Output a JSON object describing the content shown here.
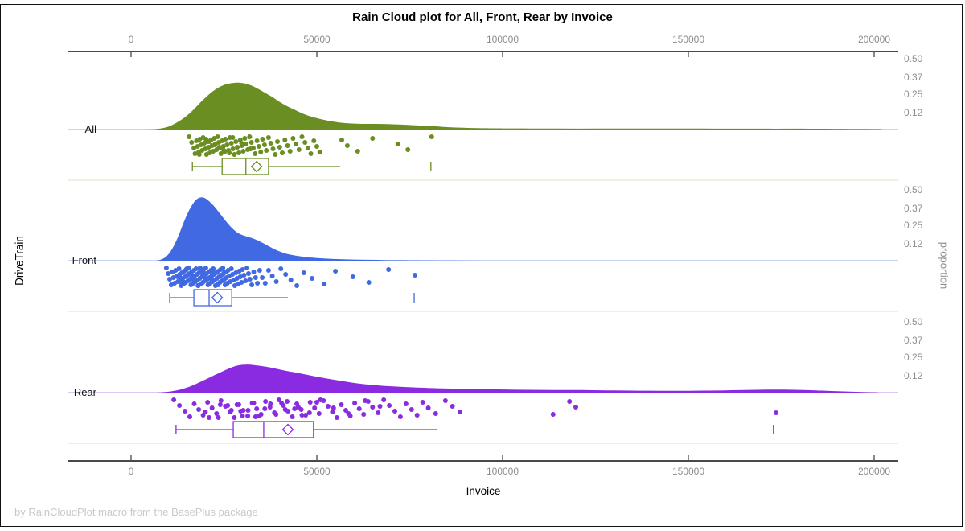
{
  "title": "Rain Cloud plot for All, Front, Rear by Invoice",
  "footer": "by RainCloudPlot macro from the BasePlus package",
  "x_axis": {
    "label": "Invoice",
    "tick_values": [
      0,
      50000,
      100000,
      150000,
      200000
    ],
    "tick_labels": [
      "0",
      "50000",
      "100000",
      "150000",
      "200000"
    ]
  },
  "y_axis": {
    "label": "DriveTrain",
    "categories": [
      "All",
      "Front",
      "Rear"
    ]
  },
  "right_axis": {
    "label": "proportion",
    "tick_values": [
      0.5,
      0.37,
      0.25,
      0.12
    ],
    "tick_labels": [
      "0.50",
      "0.37",
      "0.25",
      "0.12"
    ]
  },
  "colors": {
    "axis_line": "#0d0d0d",
    "tick_text": "#8c8c8c",
    "frame": "#111111"
  },
  "chart_data": {
    "type": "raincloud",
    "title": "Rain Cloud plot for All, Front, Rear by Invoice",
    "xlabel": "Invoice",
    "ylabel": "DriveTrain",
    "y2label": "proportion",
    "xlim": [
      -17000,
      206500
    ],
    "proportion_ticks": [
      0.12,
      0.25,
      0.37,
      0.5
    ],
    "groups": [
      {
        "name": "All",
        "color": "#6B8E23",
        "baseline_color": "#b7c78a",
        "separator_color": "#e3e9d2",
        "box": {
          "whisker_min": 16500,
          "q1": 24500,
          "median": 30900,
          "q3": 37000,
          "whisker_max": 56300,
          "mean": 33800,
          "far_outlier": 80700
        },
        "density": [
          [
            4000,
            0
          ],
          [
            7000,
            0.004
          ],
          [
            10000,
            0.02
          ],
          [
            13000,
            0.06
          ],
          [
            16000,
            0.12
          ],
          [
            19000,
            0.2
          ],
          [
            22000,
            0.27
          ],
          [
            25000,
            0.315
          ],
          [
            28000,
            0.33
          ],
          [
            30000,
            0.328
          ],
          [
            32000,
            0.315
          ],
          [
            34000,
            0.29
          ],
          [
            36000,
            0.26
          ],
          [
            38000,
            0.23
          ],
          [
            40000,
            0.195
          ],
          [
            42000,
            0.165
          ],
          [
            44000,
            0.14
          ],
          [
            46000,
            0.115
          ],
          [
            48000,
            0.095
          ],
          [
            50000,
            0.08
          ],
          [
            52000,
            0.068
          ],
          [
            54000,
            0.058
          ],
          [
            56000,
            0.05
          ],
          [
            58000,
            0.045
          ],
          [
            60000,
            0.042
          ],
          [
            63000,
            0.04
          ],
          [
            66000,
            0.04
          ],
          [
            69000,
            0.038
          ],
          [
            72000,
            0.035
          ],
          [
            75000,
            0.032
          ],
          [
            78000,
            0.028
          ],
          [
            81000,
            0.024
          ],
          [
            84000,
            0.019
          ],
          [
            87000,
            0.015
          ],
          [
            90000,
            0.012
          ],
          [
            95000,
            0.009
          ],
          [
            100000,
            0.008
          ],
          [
            110000,
            0.007
          ],
          [
            120000,
            0.0065
          ],
          [
            130000,
            0.007
          ],
          [
            140000,
            0.0075
          ],
          [
            150000,
            0.007
          ],
          [
            160000,
            0.0065
          ],
          [
            170000,
            0.006
          ],
          [
            180000,
            0.006
          ],
          [
            190000,
            0.005
          ],
          [
            197000,
            0.004
          ],
          [
            202000,
            0.003
          ]
        ],
        "rain": [
          15600,
          16300,
          16900,
          17200,
          17600,
          17900,
          18200,
          18500,
          18800,
          19100,
          19400,
          19700,
          20000,
          20300,
          20600,
          20900,
          21200,
          21500,
          21800,
          22100,
          22400,
          22700,
          23000,
          23300,
          23600,
          23900,
          24200,
          24500,
          24800,
          25100,
          25400,
          25800,
          26200,
          26600,
          27000,
          27400,
          27800,
          28200,
          28600,
          29000,
          29400,
          29800,
          30200,
          30600,
          31000,
          31400,
          31900,
          32400,
          32900,
          33400,
          33900,
          34400,
          34900,
          35400,
          35900,
          36400,
          37000,
          37600,
          38200,
          38800,
          39400,
          40000,
          40700,
          41400,
          42100,
          42800,
          43600,
          44400,
          45200,
          46000,
          46800,
          47600,
          48400,
          49200,
          50000,
          50800,
          20150,
          22550,
          24950,
          27350,
          29750,
          32150,
          18350,
          21050,
          23750,
          26450,
          56700,
          58200,
          61000,
          65000,
          71800,
          74500,
          80900
        ]
      },
      {
        "name": "Front",
        "color": "#4169E1",
        "baseline_color": "#a9bcf0",
        "separator_color": "#dbe3f8",
        "box": {
          "whisker_min": 10400,
          "q1": 16900,
          "median": 21000,
          "q3": 27100,
          "whisker_max": 42200,
          "mean": 23200,
          "far_outlier": 76200
        },
        "density": [
          [
            6500,
            0
          ],
          [
            8000,
            0.008
          ],
          [
            9500,
            0.03
          ],
          [
            11000,
            0.08
          ],
          [
            12500,
            0.16
          ],
          [
            14000,
            0.26
          ],
          [
            15500,
            0.35
          ],
          [
            17000,
            0.415
          ],
          [
            18000,
            0.44
          ],
          [
            19000,
            0.448
          ],
          [
            20000,
            0.44
          ],
          [
            21000,
            0.42
          ],
          [
            22500,
            0.38
          ],
          [
            24000,
            0.33
          ],
          [
            25500,
            0.28
          ],
          [
            27000,
            0.235
          ],
          [
            28500,
            0.2
          ],
          [
            30000,
            0.18
          ],
          [
            31500,
            0.168
          ],
          [
            33000,
            0.155
          ],
          [
            34500,
            0.138
          ],
          [
            36000,
            0.118
          ],
          [
            37500,
            0.096
          ],
          [
            39000,
            0.076
          ],
          [
            40500,
            0.06
          ],
          [
            42000,
            0.048
          ],
          [
            44000,
            0.037
          ],
          [
            46000,
            0.029
          ],
          [
            48000,
            0.023
          ],
          [
            50000,
            0.019
          ],
          [
            53000,
            0.014
          ],
          [
            56000,
            0.011
          ],
          [
            60000,
            0.008
          ],
          [
            64000,
            0.006
          ],
          [
            68000,
            0.0045
          ],
          [
            72000,
            0.0035
          ],
          [
            76000,
            0.0028
          ],
          [
            80000,
            0.002
          ],
          [
            85000,
            0.0012
          ],
          [
            90000,
            0.0006
          ],
          [
            95000,
            0.0002
          ],
          [
            100000,
            0
          ]
        ],
        "rain": [
          9500,
          10000,
          10400,
          10800,
          11100,
          11400,
          11700,
          12000,
          12300,
          12600,
          12900,
          13100,
          13300,
          13500,
          13700,
          13900,
          14100,
          14300,
          14500,
          14700,
          14900,
          15100,
          15300,
          15500,
          15700,
          15900,
          16100,
          16300,
          16500,
          16700,
          16900,
          17100,
          17300,
          17500,
          17700,
          17900,
          18100,
          18300,
          18500,
          18700,
          18900,
          19100,
          19300,
          19500,
          19700,
          19900,
          20100,
          20300,
          20500,
          20700,
          20900,
          21100,
          21300,
          21500,
          21700,
          21900,
          22100,
          22300,
          22500,
          22700,
          22900,
          23100,
          23300,
          23500,
          23700,
          23900,
          24100,
          24300,
          24500,
          24700,
          24900,
          25100,
          25300,
          25500,
          25700,
          25900,
          26100,
          26400,
          26700,
          27000,
          27300,
          27600,
          27900,
          28200,
          28500,
          28800,
          29100,
          29400,
          29700,
          30000,
          30400,
          30800,
          31200,
          31600,
          32000,
          32500,
          33000,
          33500,
          34000,
          34600,
          13000,
          14000,
          15000,
          16000,
          17000,
          18000,
          19000,
          20000,
          21000,
          22000,
          12500,
          13600,
          14800,
          16200,
          17400,
          18600,
          19800,
          21600,
          23400,
          25200,
          35300,
          36100,
          37000,
          38000,
          39100,
          40300,
          41600,
          43000,
          44600,
          46500,
          48700,
          52000,
          55000,
          59700,
          64000,
          69300,
          76400
        ]
      },
      {
        "name": "Rear",
        "color": "#8A2BE2",
        "baseline_color": "#cba4ef",
        "separator_color": "#e9d9f9",
        "box": {
          "whisker_min": 12100,
          "q1": 27500,
          "median": 35700,
          "q3": 49100,
          "whisker_max": 82500,
          "mean": 42200,
          "far_outlier": 172900
        },
        "density": [
          [
            7000,
            0
          ],
          [
            10000,
            0.006
          ],
          [
            13000,
            0.02
          ],
          [
            16000,
            0.045
          ],
          [
            19000,
            0.08
          ],
          [
            22000,
            0.118
          ],
          [
            25000,
            0.155
          ],
          [
            27000,
            0.178
          ],
          [
            29000,
            0.193
          ],
          [
            31000,
            0.198
          ],
          [
            33000,
            0.195
          ],
          [
            35000,
            0.188
          ],
          [
            38000,
            0.175
          ],
          [
            41000,
            0.158
          ],
          [
            44000,
            0.143
          ],
          [
            47000,
            0.128
          ],
          [
            50000,
            0.112
          ],
          [
            53000,
            0.098
          ],
          [
            56000,
            0.085
          ],
          [
            59000,
            0.073
          ],
          [
            62000,
            0.062
          ],
          [
            65000,
            0.054
          ],
          [
            68000,
            0.048
          ],
          [
            72000,
            0.042
          ],
          [
            76000,
            0.037
          ],
          [
            80000,
            0.033
          ],
          [
            85000,
            0.029
          ],
          [
            90000,
            0.026
          ],
          [
            95000,
            0.024
          ],
          [
            100000,
            0.022
          ],
          [
            107000,
            0.02
          ],
          [
            114000,
            0.019
          ],
          [
            121000,
            0.018
          ],
          [
            128000,
            0.016
          ],
          [
            135000,
            0.014
          ],
          [
            142000,
            0.013
          ],
          [
            150000,
            0.013
          ],
          [
            158000,
            0.015
          ],
          [
            165000,
            0.018
          ],
          [
            171000,
            0.021
          ],
          [
            176000,
            0.021
          ],
          [
            181000,
            0.018
          ],
          [
            186000,
            0.014
          ],
          [
            191000,
            0.009
          ],
          [
            196000,
            0.005
          ],
          [
            201000,
            0.002
          ]
        ],
        "rain": [
          11500,
          13000,
          14500,
          15800,
          17000,
          18200,
          19400,
          20600,
          21800,
          23000,
          24200,
          25400,
          26600,
          27800,
          29000,
          30200,
          31400,
          32600,
          33800,
          35000,
          36200,
          37400,
          38600,
          39800,
          41000,
          42200,
          43400,
          44600,
          45800,
          47000,
          48200,
          49400,
          50600,
          51800,
          53000,
          54200,
          55400,
          56600,
          57800,
          59000,
          60200,
          61400,
          62600,
          63800,
          65000,
          66500,
          68000,
          69500,
          71000,
          72500,
          74000,
          75500,
          77000,
          78500,
          80000,
          82000,
          84600,
          86500,
          88500,
          21000,
          24000,
          27000,
          30000,
          33000,
          36000,
          39000,
          42000,
          45000,
          48000,
          51000,
          26000,
          29500,
          33500,
          37500,
          41500,
          46000,
          50000,
          54500,
          58500,
          63000,
          67000,
          20000,
          23500,
          28500,
          31500,
          34500,
          40500,
          44000,
          113600,
          118000,
          119700,
          173600
        ]
      }
    ]
  }
}
